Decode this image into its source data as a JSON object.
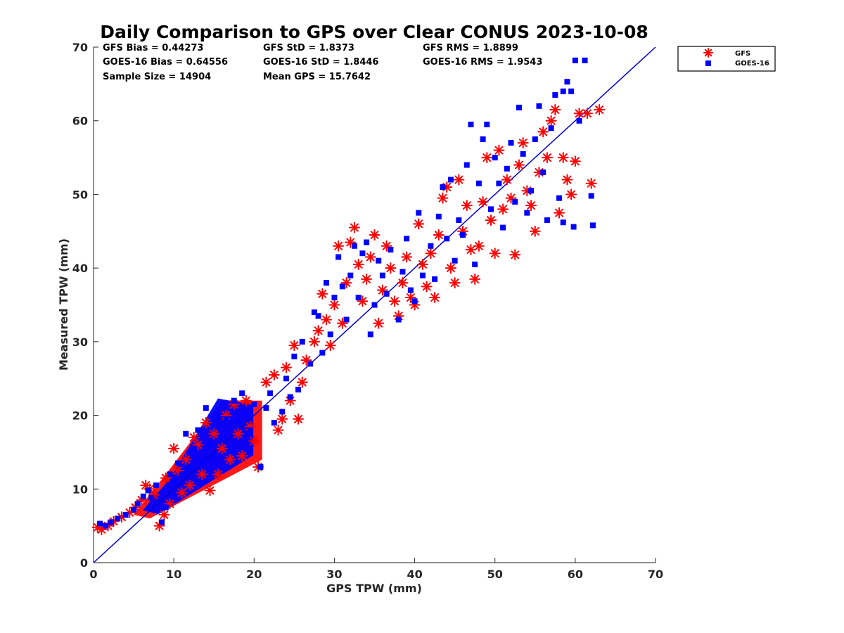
{
  "chart_data": {
    "type": "scatter",
    "title": "Daily Comparison to GPS over Clear CONUS 2023-10-08",
    "xlabel": "GPS TPW (mm)",
    "ylabel": "Measured TPW (mm)",
    "xlim": [
      0,
      70
    ],
    "ylim": [
      0,
      70
    ],
    "xticks": [
      0,
      10,
      20,
      30,
      40,
      50,
      60,
      70
    ],
    "yticks": [
      0,
      10,
      20,
      30,
      40,
      50,
      60,
      70
    ],
    "grid": false,
    "legend_position": "outside top-right",
    "reference_line": {
      "name": "1:1 line",
      "x": [
        0,
        70
      ],
      "y": [
        0,
        70
      ],
      "color": "#0000cc"
    },
    "stats": {
      "gfs_bias": "GFS Bias = 0.44273",
      "goes_bias": "GOES-16 Bias = 0.64556",
      "sample_size": "Sample Size = 14904",
      "gfs_std": "GFS StD = 1.8373",
      "goes_std": "GOES-16 StD = 1.8446",
      "mean_gps": "Mean GPS = 15.7642",
      "gfs_rms": "GFS RMS = 1.8899",
      "goes_rms": "GOES-16 RMS = 1.9543"
    },
    "series": [
      {
        "name": "GFS",
        "marker": "asterisk",
        "color": "#ff0000",
        "note": "representative sample of 14904 points",
        "points": [
          [
            0.5,
            4.8
          ],
          [
            1.0,
            4.5
          ],
          [
            1.8,
            5.0
          ],
          [
            2.5,
            5.6
          ],
          [
            3.5,
            6.2
          ],
          [
            4.5,
            6.8
          ],
          [
            5.2,
            7.5
          ],
          [
            6.0,
            8.5
          ],
          [
            6.5,
            10.5
          ],
          [
            7.0,
            10.0
          ],
          [
            7.5,
            9.2
          ],
          [
            8.2,
            5.0
          ],
          [
            8.8,
            6.5
          ],
          [
            9.0,
            11.5
          ],
          [
            9.5,
            8.0
          ],
          [
            10.0,
            15.5
          ],
          [
            10.5,
            12.5
          ],
          [
            11.0,
            9.5
          ],
          [
            11.5,
            14.0
          ],
          [
            12.0,
            10.5
          ],
          [
            12.5,
            17.0
          ],
          [
            13.0,
            16.0
          ],
          [
            13.5,
            12.0
          ],
          [
            14.0,
            19.0
          ],
          [
            14.5,
            9.8
          ],
          [
            15.0,
            17.5
          ],
          [
            15.5,
            12.0
          ],
          [
            16.0,
            15.5
          ],
          [
            16.5,
            20.0
          ],
          [
            17.0,
            14.0
          ],
          [
            17.5,
            21.5
          ],
          [
            18.0,
            17.5
          ],
          [
            18.5,
            14.5
          ],
          [
            19.0,
            22.0
          ],
          [
            19.5,
            18.5
          ],
          [
            20.0,
            16.5
          ],
          [
            20.5,
            13.0
          ],
          [
            21.5,
            24.5
          ],
          [
            22.5,
            25.5
          ],
          [
            23.0,
            18.0
          ],
          [
            23.5,
            19.5
          ],
          [
            24.0,
            26.5
          ],
          [
            24.5,
            22.0
          ],
          [
            25.0,
            29.5
          ],
          [
            25.5,
            19.5
          ],
          [
            26.0,
            24.5
          ],
          [
            26.5,
            27.5
          ],
          [
            27.5,
            30.0
          ],
          [
            28.0,
            31.5
          ],
          [
            28.5,
            36.5
          ],
          [
            29.0,
            33.0
          ],
          [
            29.5,
            29.5
          ],
          [
            30.0,
            35.0
          ],
          [
            30.5,
            43.0
          ],
          [
            31.0,
            32.5
          ],
          [
            31.5,
            38.0
          ],
          [
            32.0,
            43.5
          ],
          [
            32.5,
            45.5
          ],
          [
            33.0,
            40.5
          ],
          [
            33.5,
            35.5
          ],
          [
            34.0,
            38.5
          ],
          [
            34.5,
            41.5
          ],
          [
            35.0,
            44.5
          ],
          [
            35.5,
            32.5
          ],
          [
            36.0,
            37.0
          ],
          [
            36.5,
            43.0
          ],
          [
            37.0,
            40.0
          ],
          [
            37.5,
            35.5
          ],
          [
            38.0,
            33.5
          ],
          [
            38.5,
            38.0
          ],
          [
            39.0,
            41.5
          ],
          [
            39.5,
            36.0
          ],
          [
            40.0,
            35.0
          ],
          [
            40.5,
            46.0
          ],
          [
            41.0,
            40.5
          ],
          [
            41.5,
            37.5
          ],
          [
            42.0,
            42.0
          ],
          [
            42.5,
            36.0
          ],
          [
            43.0,
            44.5
          ],
          [
            43.5,
            49.5
          ],
          [
            44.0,
            51.0
          ],
          [
            44.5,
            40.0
          ],
          [
            45.0,
            38.0
          ],
          [
            45.5,
            52.0
          ],
          [
            46.0,
            45.0
          ],
          [
            46.5,
            48.5
          ],
          [
            47.0,
            42.5
          ],
          [
            47.5,
            38.5
          ],
          [
            48.0,
            43.0
          ],
          [
            48.5,
            49.0
          ],
          [
            49.0,
            55.0
          ],
          [
            49.5,
            46.5
          ],
          [
            50.0,
            42.0
          ],
          [
            50.5,
            56.0
          ],
          [
            51.0,
            48.0
          ],
          [
            51.5,
            52.0
          ],
          [
            52.0,
            49.5
          ],
          [
            52.5,
            41.8
          ],
          [
            53.0,
            54.0
          ],
          [
            53.5,
            57.0
          ],
          [
            54.0,
            50.5
          ],
          [
            54.5,
            48.5
          ],
          [
            55.0,
            45.0
          ],
          [
            55.5,
            53.0
          ],
          [
            56.0,
            58.5
          ],
          [
            56.5,
            55.0
          ],
          [
            57.0,
            60.0
          ],
          [
            57.5,
            61.5
          ],
          [
            58.0,
            47.5
          ],
          [
            58.5,
            55.0
          ],
          [
            59.0,
            52.0
          ],
          [
            59.5,
            50.0
          ],
          [
            60.0,
            54.5
          ],
          [
            60.5,
            61.0
          ],
          [
            61.5,
            61.0
          ],
          [
            62.0,
            51.5
          ],
          [
            63.0,
            61.5
          ]
        ]
      },
      {
        "name": "GOES-16",
        "marker": "square",
        "color": "#0000ff",
        "note": "representative sample of 14904 points",
        "points": [
          [
            0.8,
            5.3
          ],
          [
            1.5,
            5.0
          ],
          [
            2.2,
            5.5
          ],
          [
            3.0,
            6.0
          ],
          [
            4.0,
            6.5
          ],
          [
            5.0,
            7.2
          ],
          [
            5.5,
            8.0
          ],
          [
            6.2,
            9.0
          ],
          [
            6.8,
            9.8
          ],
          [
            7.2,
            8.8
          ],
          [
            7.8,
            10.5
          ],
          [
            8.5,
            5.5
          ],
          [
            9.0,
            7.5
          ],
          [
            9.5,
            12.0
          ],
          [
            10.0,
            11.0
          ],
          [
            10.5,
            13.5
          ],
          [
            11.0,
            12.0
          ],
          [
            11.5,
            17.5
          ],
          [
            12.0,
            13.0
          ],
          [
            12.5,
            15.5
          ],
          [
            13.0,
            18.0
          ],
          [
            13.5,
            13.5
          ],
          [
            14.0,
            21.0
          ],
          [
            14.5,
            16.0
          ],
          [
            15.0,
            14.5
          ],
          [
            15.5,
            20.0
          ],
          [
            16.0,
            17.0
          ],
          [
            16.5,
            19.5
          ],
          [
            17.0,
            15.5
          ],
          [
            17.5,
            22.0
          ],
          [
            18.0,
            19.0
          ],
          [
            18.5,
            23.0
          ],
          [
            19.0,
            20.0
          ],
          [
            19.5,
            18.0
          ],
          [
            20.0,
            21.5
          ],
          [
            20.8,
            13.0
          ],
          [
            21.5,
            21.0
          ],
          [
            22.0,
            23.0
          ],
          [
            22.5,
            19.0
          ],
          [
            23.5,
            20.5
          ],
          [
            24.0,
            25.0
          ],
          [
            24.5,
            22.5
          ],
          [
            25.0,
            28.0
          ],
          [
            25.5,
            23.5
          ],
          [
            26.0,
            30.0
          ],
          [
            27.0,
            27.0
          ],
          [
            27.5,
            34.0
          ],
          [
            28.0,
            33.5
          ],
          [
            28.5,
            28.5
          ],
          [
            29.0,
            38.0
          ],
          [
            29.5,
            31.0
          ],
          [
            30.0,
            36.0
          ],
          [
            30.5,
            41.5
          ],
          [
            31.0,
            37.5
          ],
          [
            31.5,
            33.0
          ],
          [
            32.0,
            39.0
          ],
          [
            32.5,
            43.0
          ],
          [
            33.0,
            36.0
          ],
          [
            33.5,
            42.0
          ],
          [
            34.0,
            43.5
          ],
          [
            34.5,
            31.0
          ],
          [
            35.0,
            35.0
          ],
          [
            35.5,
            41.0
          ],
          [
            36.0,
            39.0
          ],
          [
            36.5,
            36.5
          ],
          [
            37.0,
            42.5
          ],
          [
            38.0,
            33.0
          ],
          [
            38.5,
            39.5
          ],
          [
            39.0,
            44.0
          ],
          [
            39.5,
            37.0
          ],
          [
            40.0,
            35.5
          ],
          [
            40.5,
            47.5
          ],
          [
            41.0,
            39.0
          ],
          [
            42.0,
            43.0
          ],
          [
            42.5,
            38.5
          ],
          [
            43.0,
            47.0
          ],
          [
            43.5,
            51.0
          ],
          [
            44.0,
            44.0
          ],
          [
            44.5,
            52.0
          ],
          [
            45.0,
            41.0
          ],
          [
            45.5,
            46.5
          ],
          [
            46.0,
            44.5
          ],
          [
            46.5,
            54.0
          ],
          [
            47.0,
            59.5
          ],
          [
            47.5,
            40.5
          ],
          [
            48.0,
            51.5
          ],
          [
            48.5,
            57.5
          ],
          [
            49.0,
            59.5
          ],
          [
            49.5,
            48.0
          ],
          [
            50.0,
            55.0
          ],
          [
            50.5,
            51.5
          ],
          [
            51.0,
            45.5
          ],
          [
            51.5,
            53.5
          ],
          [
            52.0,
            57.0
          ],
          [
            52.5,
            49.0
          ],
          [
            53.0,
            61.8
          ],
          [
            53.5,
            55.5
          ],
          [
            54.0,
            47.5
          ],
          [
            54.5,
            50.5
          ],
          [
            55.0,
            57.5
          ],
          [
            55.5,
            62.0
          ],
          [
            56.0,
            53.0
          ],
          [
            56.5,
            46.5
          ],
          [
            57.0,
            59.0
          ],
          [
            57.5,
            63.5
          ],
          [
            58.0,
            49.5
          ],
          [
            58.5,
            64.0
          ],
          [
            59.0,
            65.3
          ],
          [
            59.5,
            64.0
          ],
          [
            60.0,
            68.2
          ],
          [
            60.5,
            60.0
          ],
          [
            61.2,
            68.2
          ],
          [
            62.0,
            49.8
          ],
          [
            62.2,
            45.8
          ],
          [
            58.5,
            46.2
          ],
          [
            59.8,
            45.6
          ]
        ]
      }
    ],
    "dense_clusters": [
      {
        "series": "GFS",
        "x_range": [
          5,
          21
        ],
        "y_range": [
          6,
          22
        ]
      },
      {
        "series": "GOES-16",
        "x_range": [
          5.5,
          20.5
        ],
        "y_range": [
          6,
          22
        ]
      }
    ]
  }
}
